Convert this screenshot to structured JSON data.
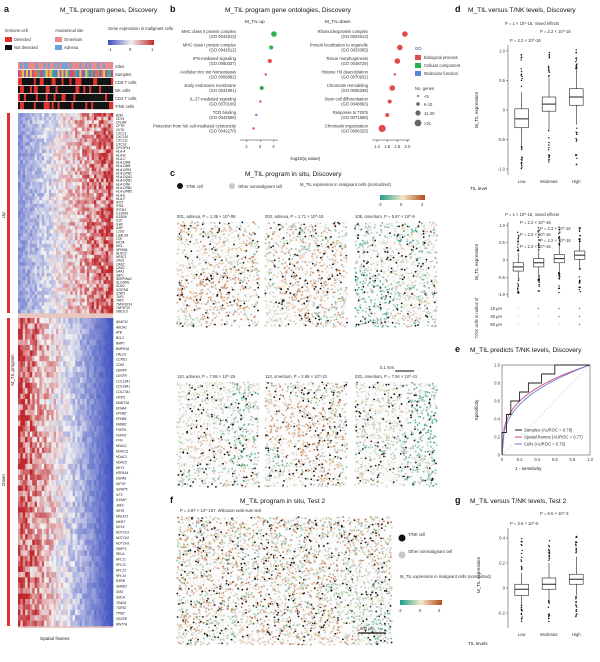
{
  "figure": {
    "colors": {
      "detected": "#e0322a",
      "not_detected": "#111111",
      "omentum": "#e98989",
      "adnexa": "#6fa0d8",
      "heat_low": "#3b4cc0",
      "heat_mid": "#f2f2f2",
      "heat_high": "#c0282d",
      "up_bar": "#e0322a",
      "down_bar": "#e0322a",
      "go_bio": "#e24b4b",
      "go_cell": "#2bb24c",
      "go_mol": "#5a86d6",
      "insitu_low": "#1f9e89",
      "insitu_high": "#b3491c",
      "tnk": "#111111",
      "other": "#c8c8c8",
      "roc_samples": "#222222",
      "roc_frames": "#d04c78",
      "roc_cells": "#6a7fc8"
    }
  },
  "panel_a": {
    "letter": "a",
    "title": "M_TIL program genes, Discovery",
    "legend_immune_title": "Immune cell",
    "legend_detected": "Detected",
    "legend_not_detected": "Not detected",
    "legend_site_title": "Anatomical site",
    "legend_omentum": "Omentum",
    "legend_adnexa": "Adnexa",
    "legend_gene_expr": "Gene expression in malignant cells",
    "colorbar_ticks": [
      "-1",
      "0",
      "1"
    ],
    "row_labels": [
      "Sites",
      "Samples",
      "CD8 T cells",
      "NK cells",
      "CD4 T cells",
      "T/NK cells"
    ],
    "up_label": "Up",
    "down_label": "Down",
    "program_label": "M_TIL program",
    "x_label": "Spatial frames",
    "up_genes": [
      "B2M",
      "CD74",
      "CFLAR",
      "CFTR",
      "CIITA",
      "CXCL1",
      "CXCL10",
      "CXCL11",
      "CXCL9",
      "GPX3P14",
      "HLA-A",
      "HLA-B",
      "HLA-C",
      "HLA-DMA",
      "HLA-DMB",
      "HLA-DPA1",
      "HLA-DPB1",
      "HLA-DQA1",
      "HLA-DQB1",
      "HLA-DRA",
      "HLA-DRB1",
      "HLA-DRB5",
      "HLA-E",
      "HLA-F",
      "IFI27",
      "IFI44",
      "IFITM1",
      "IL13RA1",
      "IL15RA",
      "IL32",
      "IL4R",
      "IL6R",
      "LCN2",
      "LGALS9",
      "LTB",
      "MT2A",
      "MX1",
      "NFKBIA",
      "NLRC5",
      "NR3C1",
      "OAS1",
      "OAS2",
      "OAS3",
      "SAA1",
      "SAT1",
      "SERPINA1",
      "SLC40A1",
      "SOD2",
      "S2STM1",
      "STAT1",
      "TAP1",
      "TAP2",
      "TNFRSF14",
      "TNFSF10",
      "UBE2L6"
    ],
    "down_genes": [
      "AKAP12",
      "AROA1",
      "ATB",
      "BCL2",
      "BMP7",
      "BMPR1A",
      "CALD1",
      "CCND1",
      "CD63",
      "CENPF",
      "CNTFR",
      "COL12A1",
      "COL18A1",
      "COL27A1",
      "CRIP1",
      "DNMT3A",
      "EFNA4",
      "EPHB2",
      "EPHB4",
      "ERBB2",
      "FGFR1",
      "FGFR2",
      "FYN",
      "HDAC1",
      "HDAC11",
      "HDAC3",
      "HDAC5",
      "HEY1",
      "HSPA1A",
      "HSPA9",
      "IGF1R",
      "IGFBP5",
      "ILF3",
      "IL18AP",
      "JAK2",
      "KRT8",
      "MALAT1",
      "MKI67",
      "MYL9",
      "NOTCH1",
      "NOTCH2",
      "NOTCH3",
      "PARP1",
      "RELA",
      "RPL21",
      "RPL22",
      "RPL23",
      "RPL34",
      "RXRB",
      "SMAD2",
      "SMO",
      "SNCA",
      "TEAD4",
      "TGFB2",
      "TPM2",
      "VEGFB",
      "WNT7A"
    ]
  },
  "panel_b": {
    "letter": "b",
    "title": "M_TIL program gene ontologies, Discovery",
    "up_title": "M_TIL-up",
    "down_title": "M_TIL-down",
    "x_label": "-log10(q value)",
    "up_ticks": [
      "2",
      "3",
      "4"
    ],
    "down_ticks": [
      "1.4",
      "1.6",
      "1.8",
      "2.0"
    ],
    "legend_go_title": "GO",
    "legend_bio": "Biological process",
    "legend_cell": "Cellular component",
    "legend_mol": "Molecular function",
    "legend_genes_title": "No. genes",
    "legend_sizes": [
      "<5",
      "6-10",
      "11-20",
      ">21"
    ],
    "up_terms": [
      {
        "term": "MHC class II protein complex",
        "go": "(GO 0042613)",
        "q": 4.0,
        "cat": "cell",
        "n": 3
      },
      {
        "term": "MHC class I protein complex",
        "go": "(GO 0042612)",
        "q": 3.8,
        "cat": "cell",
        "n": 2
      },
      {
        "term": "IFN-mediated signaling",
        "go": "(GO 0060337)",
        "q": 3.7,
        "cat": "bio",
        "n": 2
      },
      {
        "term": "Acellular zinc ion homeostasis",
        "go": "(GO 0006882)",
        "q": 3.4,
        "cat": "bio",
        "n": 1
      },
      {
        "term": "Early endosome membrane",
        "go": "(GO 0031901)",
        "q": 3.1,
        "cat": "cell",
        "n": 2
      },
      {
        "term": "IL-27-mediated signaling",
        "go": "(GO 0070106)",
        "q": 3.0,
        "cat": "bio",
        "n": 1
      },
      {
        "term": "TCR binding",
        "go": "(GO 0042608)",
        "q": 2.7,
        "cat": "mol",
        "n": 1
      },
      {
        "term": "Protection from NK cell-mediated cytotoxicity",
        "go": "(GO 0042270)",
        "q": 2.5,
        "cat": "bio",
        "n": 1
      }
    ],
    "down_terms": [
      {
        "term": "Ribonucleoprotein complex",
        "go": "(GO 0022613)",
        "q": 1.95,
        "cat": "bio",
        "n": 3
      },
      {
        "term": "Protein localization to organelle",
        "go": "(GO 0033365)",
        "q": 1.85,
        "cat": "bio",
        "n": 3
      },
      {
        "term": "Tissue morphogenesis",
        "go": "(GO 0048729)",
        "q": 1.8,
        "cat": "bio",
        "n": 3
      },
      {
        "term": "Histone H3 deacetylation",
        "go": "(GO 0070932)",
        "q": 1.75,
        "cat": "bio",
        "n": 1
      },
      {
        "term": "Chromatin remodeling",
        "go": "(GO 0006338)",
        "q": 1.7,
        "cat": "bio",
        "n": 3
      },
      {
        "term": "Stem cell differentiation",
        "go": "(GO 0048863)",
        "q": 1.65,
        "cat": "bio",
        "n": 2
      },
      {
        "term": "Response to TGFb",
        "go": "(GO 0071559)",
        "q": 1.6,
        "cat": "bio",
        "n": 2
      },
      {
        "term": "Chromatin organization",
        "go": "(GO 0006325)",
        "q": 1.5,
        "cat": "bio",
        "n": 4
      }
    ]
  },
  "panel_c": {
    "letter": "c",
    "title": "M_TIL program in situ, Discovery",
    "legend_tnk": "T/NK cell",
    "legend_other": "Other nonmalignant cell",
    "legend_expr": "M_TIL expression in malignant cells (normalized)",
    "colorbar_ticks": [
      "-2",
      "0",
      "2"
    ],
    "tiles": [
      {
        "label": "001, adnexa, P = 1.36 × 10^-08",
        "seed": 3
      },
      {
        "label": "003, adnexa, P = 1.71 × 10^-15",
        "seed": 7
      },
      {
        "label": "108, omentum, P = 5.67 × 10^-5",
        "seed": 11
      },
      {
        "label": "110, adnexa, P = 7.98 × 10^-25",
        "seed": 17
      },
      {
        "label": "113, omentum, P = 2.68 × 10^-23",
        "seed": 23
      },
      {
        "label": "033, omentum, P = 7.94 × 10^-41",
        "seed": 29
      }
    ],
    "scale": "0.1 mm"
  },
  "panel_d": {
    "letter": "d",
    "title": "M_TIL versus T/NK levels, Discovery",
    "top": {
      "ylabel": "M_TIL expression",
      "xlabel": "TIL level",
      "categories": [
        "Low",
        "Moderate",
        "High"
      ],
      "stats_main": "P = 1 × 10^-16, mixed effects",
      "stats_1": "P = 2.2 × 10^-16",
      "stats_2": "P = 2.2 × 10^-16",
      "y_ticks": [
        "1.0",
        "0.5",
        "0",
        "-0.5",
        "-1.0"
      ],
      "ylim": [
        -1.1,
        1.1
      ],
      "boxes": [
        {
          "q1": -0.3,
          "median": -0.15,
          "q3": 0.02,
          "lo": -0.6,
          "hi": 0.3
        },
        {
          "q1": -0.02,
          "median": 0.1,
          "q3": 0.22,
          "lo": -0.35,
          "hi": 0.55
        },
        {
          "q1": 0.08,
          "median": 0.22,
          "q3": 0.36,
          "lo": -0.25,
          "hi": 0.7
        }
      ]
    },
    "bottom": {
      "ylabel": "M_TIL expression",
      "stats_main": "P = 1 × 10^-16, mixed effects",
      "stats_list": [
        "P = 2.2 × 10^-16",
        "P = 2.2 × 10^-16",
        "P = 2.2 × 10^-16",
        "P = 2.2 × 10^-16",
        "P = 2.2 × 10^-16"
      ],
      "y_ticks": [
        "1.0",
        "0.5",
        "0",
        "-0.5",
        "-1.0"
      ],
      "ylim": [
        -1.1,
        1.1
      ],
      "row_labels": [
        "18 µm",
        "36 µm",
        "90 µm"
      ],
      "side_label": "T/NK cells in radius of",
      "grid": [
        [
          "-",
          "+",
          "+",
          "+"
        ],
        [
          "-",
          "-",
          "+",
          "+"
        ],
        [
          "-",
          "-",
          "-",
          "+"
        ]
      ],
      "boxes": [
        {
          "q1": -0.32,
          "median": -0.2,
          "q3": -0.08,
          "lo": -0.55,
          "hi": 0.2
        },
        {
          "q1": -0.2,
          "median": -0.08,
          "q3": 0.04,
          "lo": -0.45,
          "hi": 0.3
        },
        {
          "q1": -0.08,
          "median": 0.04,
          "q3": 0.16,
          "lo": -0.35,
          "hi": 0.42
        },
        {
          "q1": 0.02,
          "median": 0.14,
          "q3": 0.26,
          "lo": -0.25,
          "hi": 0.52
        }
      ]
    }
  },
  "panel_e": {
    "letter": "e",
    "title": "M_TIL predicts T/NK levels, Discovery",
    "xlabel": "1 - sensitivity",
    "ylabel": "Specificity",
    "ticks": [
      "0",
      "0.2",
      "0.4",
      "0.6",
      "0.8",
      "1.0"
    ],
    "legend": [
      "Samples (AUROC = 0.78)",
      "Spatial frames (AUROC = 0.77)",
      "Cells (AUROC = 0.75)"
    ]
  },
  "panel_f": {
    "letter": "f",
    "title": "M_TIL program in situ, Test 2",
    "subtitle": "P = 2.87 × 10^-167, Wilcoxon rank-sum test",
    "legend_tnk": "T/NK cell",
    "legend_other": "Other nonmalignant cell",
    "legend_expr": "M_TIL expression in malignant cells (normalized)",
    "colorbar_ticks": [
      "-2",
      "0",
      "2"
    ],
    "scale": "500 µm"
  },
  "panel_g": {
    "letter": "g",
    "title": "M_TIL versus T/NK levels, Test 2",
    "ylabel": "M_TIL expression",
    "xlabel": "TIL levels",
    "categories": [
      "Low",
      "Moderate",
      "High"
    ],
    "stat_1": "P = 3.6 × 10^-5",
    "stat_2": "P = 8.5 × 10^-3",
    "y_ticks": [
      "0.4",
      "0.2",
      "0",
      "-0.2"
    ],
    "ylim": [
      -0.32,
      0.48
    ],
    "boxes": [
      {
        "q1": -0.06,
        "median": -0.01,
        "q3": 0.03,
        "lo": -0.14,
        "hi": 0.12
      },
      {
        "q1": -0.01,
        "median": 0.03,
        "q3": 0.08,
        "lo": -0.1,
        "hi": 0.2
      },
      {
        "q1": 0.03,
        "median": 0.07,
        "q3": 0.11,
        "lo": -0.06,
        "hi": 0.25
      }
    ]
  }
}
